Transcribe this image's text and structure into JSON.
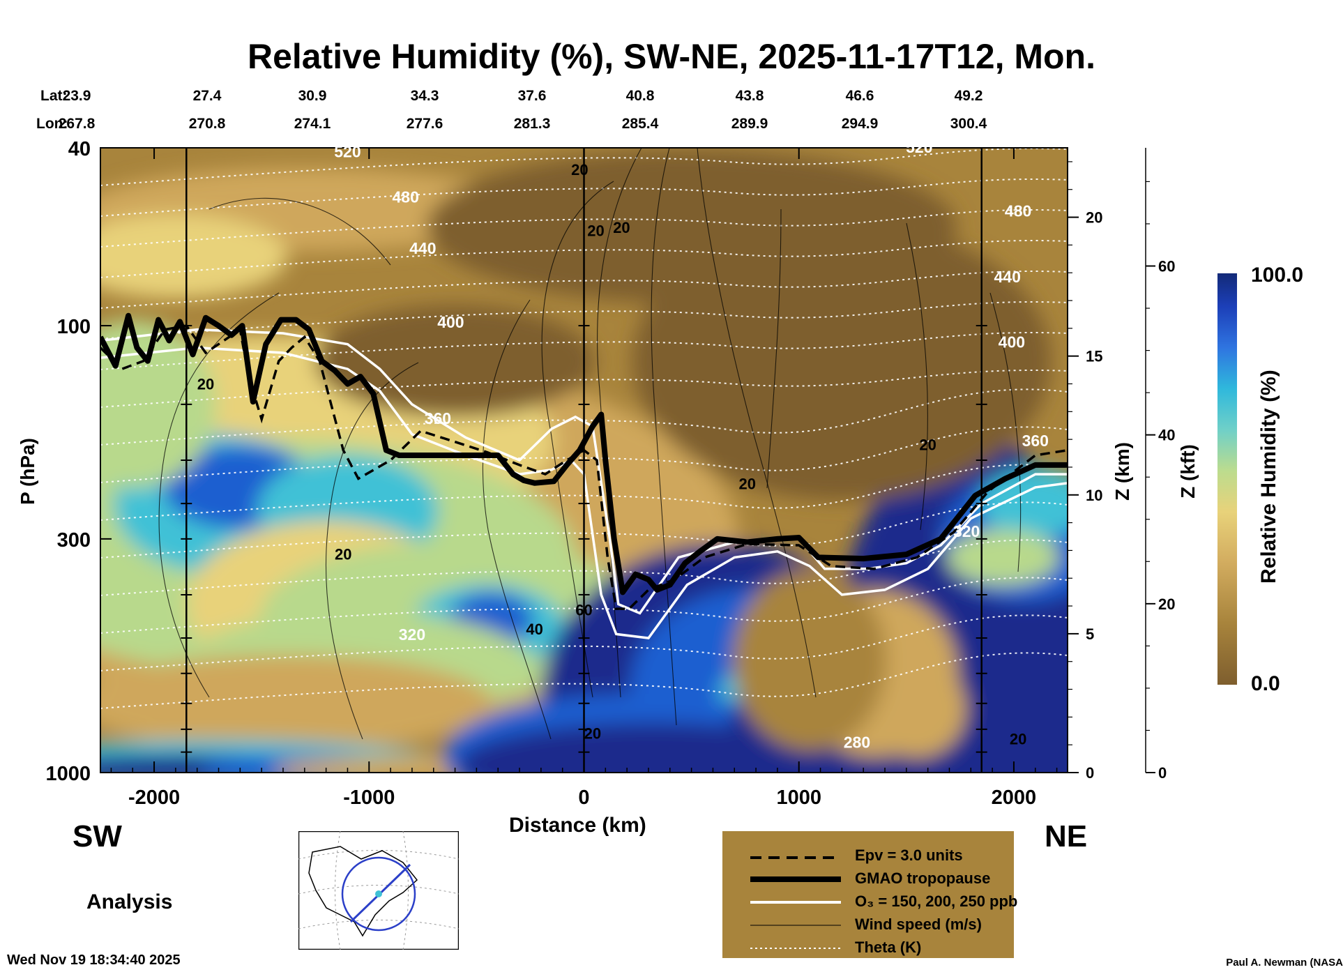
{
  "chart_data": {
    "type": "heatmap",
    "title": "Relative Humidity (%), SW-NE, 2025-11-17T12, Mon.",
    "xlabel": "Distance (km)",
    "ylabel": "P (hPa)",
    "y2label": "Z (km)",
    "y3label": "Z (kft)",
    "xlim": [
      -2250,
      2250
    ],
    "ylim": [
      1000,
      40
    ],
    "x_ticks": [
      {
        "value": -2000,
        "label": "-2000"
      },
      {
        "value": -1000,
        "label": "-1000"
      },
      {
        "value": 0,
        "label": "0"
      },
      {
        "value": 1000,
        "label": "1000"
      },
      {
        "value": 2000,
        "label": "2000"
      }
    ],
    "p_ticks": [
      {
        "value": 40,
        "label": "40"
      },
      {
        "value": 100,
        "label": "100"
      },
      {
        "value": 300,
        "label": "300"
      },
      {
        "value": 1000,
        "label": "1000"
      }
    ],
    "z_km_ticks": [
      {
        "value": 0,
        "label": "0"
      },
      {
        "value": 5,
        "label": "5"
      },
      {
        "value": 10,
        "label": "10"
      },
      {
        "value": 15,
        "label": "15"
      },
      {
        "value": 20,
        "label": "20"
      }
    ],
    "z_kft_ticks": [
      {
        "value": 0,
        "label": "0"
      },
      {
        "value": 20,
        "label": "20"
      },
      {
        "value": 40,
        "label": "40"
      },
      {
        "value": 60,
        "label": "60"
      }
    ],
    "lat_label": "Lat:",
    "lon_label": "Lon:",
    "lat": [
      "23.9",
      "27.4",
      "30.9",
      "34.3",
      "37.6",
      "40.8",
      "43.8",
      "46.6",
      "49.2"
    ],
    "lon": [
      "267.8",
      "270.8",
      "274.1",
      "277.6",
      "281.3",
      "285.4",
      "289.9",
      "294.9",
      "300.4"
    ],
    "colorbar": {
      "label": "Relative Humidity (%)",
      "max_label": "100.0",
      "min_label": "0.0",
      "min": 0,
      "max": 100
    },
    "theta_contours": [
      {
        "label": "520",
        "x": -1100,
        "p": 42
      },
      {
        "label": "480",
        "x": -830,
        "p": 53
      },
      {
        "label": "440",
        "x": -750,
        "p": 69
      },
      {
        "label": "400",
        "x": -620,
        "p": 101
      },
      {
        "label": "360",
        "x": -680,
        "p": 166
      },
      {
        "label": "320",
        "x": -800,
        "p": 505
      },
      {
        "label": "280",
        "x": 1270,
        "p": 880
      },
      {
        "label": "520",
        "x": 1560,
        "p": 41
      },
      {
        "label": "480",
        "x": 2020,
        "p": 57
      },
      {
        "label": "440",
        "x": 1970,
        "p": 80
      },
      {
        "label": "400",
        "x": 1990,
        "p": 112
      },
      {
        "label": "360",
        "x": 2100,
        "p": 186
      },
      {
        "label": "320",
        "x": 1780,
        "p": 297
      }
    ],
    "wind_contours": [
      {
        "label": "20",
        "x": -20,
        "p": 46
      },
      {
        "label": "20",
        "x": 55,
        "p": 63
      },
      {
        "label": "20",
        "x": 175,
        "p": 62
      },
      {
        "label": "20",
        "x": -1760,
        "p": 139
      },
      {
        "label": "20",
        "x": 1600,
        "p": 190
      },
      {
        "label": "20",
        "x": 760,
        "p": 232
      },
      {
        "label": "20",
        "x": -1120,
        "p": 334
      },
      {
        "label": "40",
        "x": -230,
        "p": 491
      },
      {
        "label": "60",
        "x": 0,
        "p": 445
      },
      {
        "label": "20",
        "x": 40,
        "p": 840
      },
      {
        "label": "20",
        "x": 2020,
        "p": 865
      }
    ],
    "tropopause": [
      [
        -2250,
        106
      ],
      [
        -2180,
        123
      ],
      [
        -2120,
        95
      ],
      [
        -2080,
        112
      ],
      [
        -2030,
        120
      ],
      [
        -1980,
        97
      ],
      [
        -1930,
        108
      ],
      [
        -1880,
        98
      ],
      [
        -1820,
        116
      ],
      [
        -1760,
        96
      ],
      [
        -1700,
        100
      ],
      [
        -1640,
        105
      ],
      [
        -1590,
        100
      ],
      [
        -1540,
        148
      ],
      [
        -1480,
        110
      ],
      [
        -1410,
        97
      ],
      [
        -1340,
        97
      ],
      [
        -1280,
        102
      ],
      [
        -1220,
        120
      ],
      [
        -1160,
        126
      ],
      [
        -1100,
        135
      ],
      [
        -1040,
        130
      ],
      [
        -980,
        142
      ],
      [
        -920,
        190
      ],
      [
        -860,
        195
      ],
      [
        -400,
        195
      ],
      [
        -330,
        215
      ],
      [
        -280,
        222
      ],
      [
        -230,
        225
      ],
      [
        -140,
        223
      ],
      [
        -80,
        205
      ],
      [
        -20,
        190
      ],
      [
        40,
        168
      ],
      [
        80,
        158
      ],
      [
        100,
        200
      ],
      [
        140,
        300
      ],
      [
        180,
        395
      ],
      [
        240,
        360
      ],
      [
        300,
        370
      ],
      [
        340,
        390
      ],
      [
        400,
        380
      ],
      [
        470,
        340
      ],
      [
        540,
        320
      ],
      [
        620,
        300
      ],
      [
        760,
        305
      ],
      [
        900,
        300
      ],
      [
        1000,
        298
      ],
      [
        1090,
        330
      ],
      [
        1300,
        332
      ],
      [
        1500,
        325
      ],
      [
        1660,
        300
      ],
      [
        1820,
        240
      ],
      [
        1960,
        220
      ],
      [
        2100,
        205
      ],
      [
        2250,
        205
      ]
    ],
    "ozone_250ppb": [
      [
        -2250,
        108
      ],
      [
        -1800,
        102
      ],
      [
        -1400,
        104
      ],
      [
        -1100,
        110
      ],
      [
        -950,
        125
      ],
      [
        -800,
        150
      ],
      [
        -550,
        178
      ],
      [
        -300,
        200
      ],
      [
        -150,
        170
      ],
      [
        -40,
        160
      ],
      [
        40,
        168
      ],
      [
        120,
        300
      ],
      [
        160,
        420
      ],
      [
        260,
        440
      ],
      [
        440,
        330
      ],
      [
        700,
        305
      ],
      [
        900,
        300
      ],
      [
        1000,
        300
      ],
      [
        1120,
        350
      ],
      [
        1320,
        350
      ],
      [
        1500,
        340
      ],
      [
        1660,
        310
      ],
      [
        1850,
        250
      ],
      [
        2100,
        215
      ],
      [
        2250,
        215
      ]
    ],
    "ozone_150ppb": [
      [
        -2250,
        118
      ],
      [
        -1800,
        112
      ],
      [
        -1400,
        115
      ],
      [
        -1100,
        125
      ],
      [
        -950,
        140
      ],
      [
        -800,
        175
      ],
      [
        -550,
        195
      ],
      [
        -300,
        215
      ],
      [
        -150,
        210
      ],
      [
        -60,
        200
      ],
      [
        0,
        215
      ],
      [
        80,
        400
      ],
      [
        150,
        490
      ],
      [
        300,
        500
      ],
      [
        480,
        380
      ],
      [
        700,
        330
      ],
      [
        900,
        320
      ],
      [
        1050,
        345
      ],
      [
        1200,
        400
      ],
      [
        1400,
        390
      ],
      [
        1600,
        350
      ],
      [
        1800,
        270
      ],
      [
        2100,
        230
      ],
      [
        2250,
        225
      ]
    ],
    "epv_3units": [
      [
        -2250,
        112
      ],
      [
        -2150,
        125
      ],
      [
        -2050,
        120
      ],
      [
        -1950,
        102
      ],
      [
        -1850,
        100
      ],
      [
        -1760,
        115
      ],
      [
        -1700,
        110
      ],
      [
        -1600,
        102
      ],
      [
        -1560,
        130
      ],
      [
        -1500,
        162
      ],
      [
        -1420,
        120
      ],
      [
        -1360,
        112
      ],
      [
        -1300,
        106
      ],
      [
        -1230,
        120
      ],
      [
        -1120,
        190
      ],
      [
        -1050,
        220
      ],
      [
        -900,
        200
      ],
      [
        -760,
        172
      ],
      [
        -600,
        182
      ],
      [
        -450,
        192
      ],
      [
        -300,
        205
      ],
      [
        -180,
        215
      ],
      [
        -80,
        200
      ],
      [
        0,
        190
      ],
      [
        60,
        200
      ],
      [
        110,
        330
      ],
      [
        150,
        430
      ],
      [
        210,
        430
      ],
      [
        300,
        390
      ],
      [
        420,
        370
      ],
      [
        560,
        330
      ],
      [
        760,
        308
      ],
      [
        1000,
        310
      ],
      [
        1150,
        345
      ],
      [
        1350,
        350
      ],
      [
        1550,
        330
      ],
      [
        1720,
        290
      ],
      [
        1880,
        235
      ],
      [
        2100,
        195
      ],
      [
        2250,
        190
      ]
    ]
  },
  "labels": {
    "sw": "SW",
    "ne": "NE",
    "analysis": "Analysis",
    "timestamp": "Wed Nov 19 18:34:40 2025",
    "credit": "Paul A. Newman (NASA"
  },
  "legend": {
    "epv": "Epv = 3.0 units",
    "tropopause": "GMAO tropopause",
    "ozone": "O₃ = 150, 200, 250 ppb",
    "wind": "Wind speed (m/s)",
    "theta": "Theta (K)"
  },
  "colors": {
    "brown_dark": "#7e5e2e",
    "brown": "#a8843c",
    "tan": "#cfa75c",
    "yellow": "#e8d27a",
    "lightgreen": "#b8d98c",
    "cyan": "#3fc1d6",
    "blue": "#1f5fd0",
    "navy": "#1a2a8c",
    "legend_bg": "#a8843c"
  }
}
